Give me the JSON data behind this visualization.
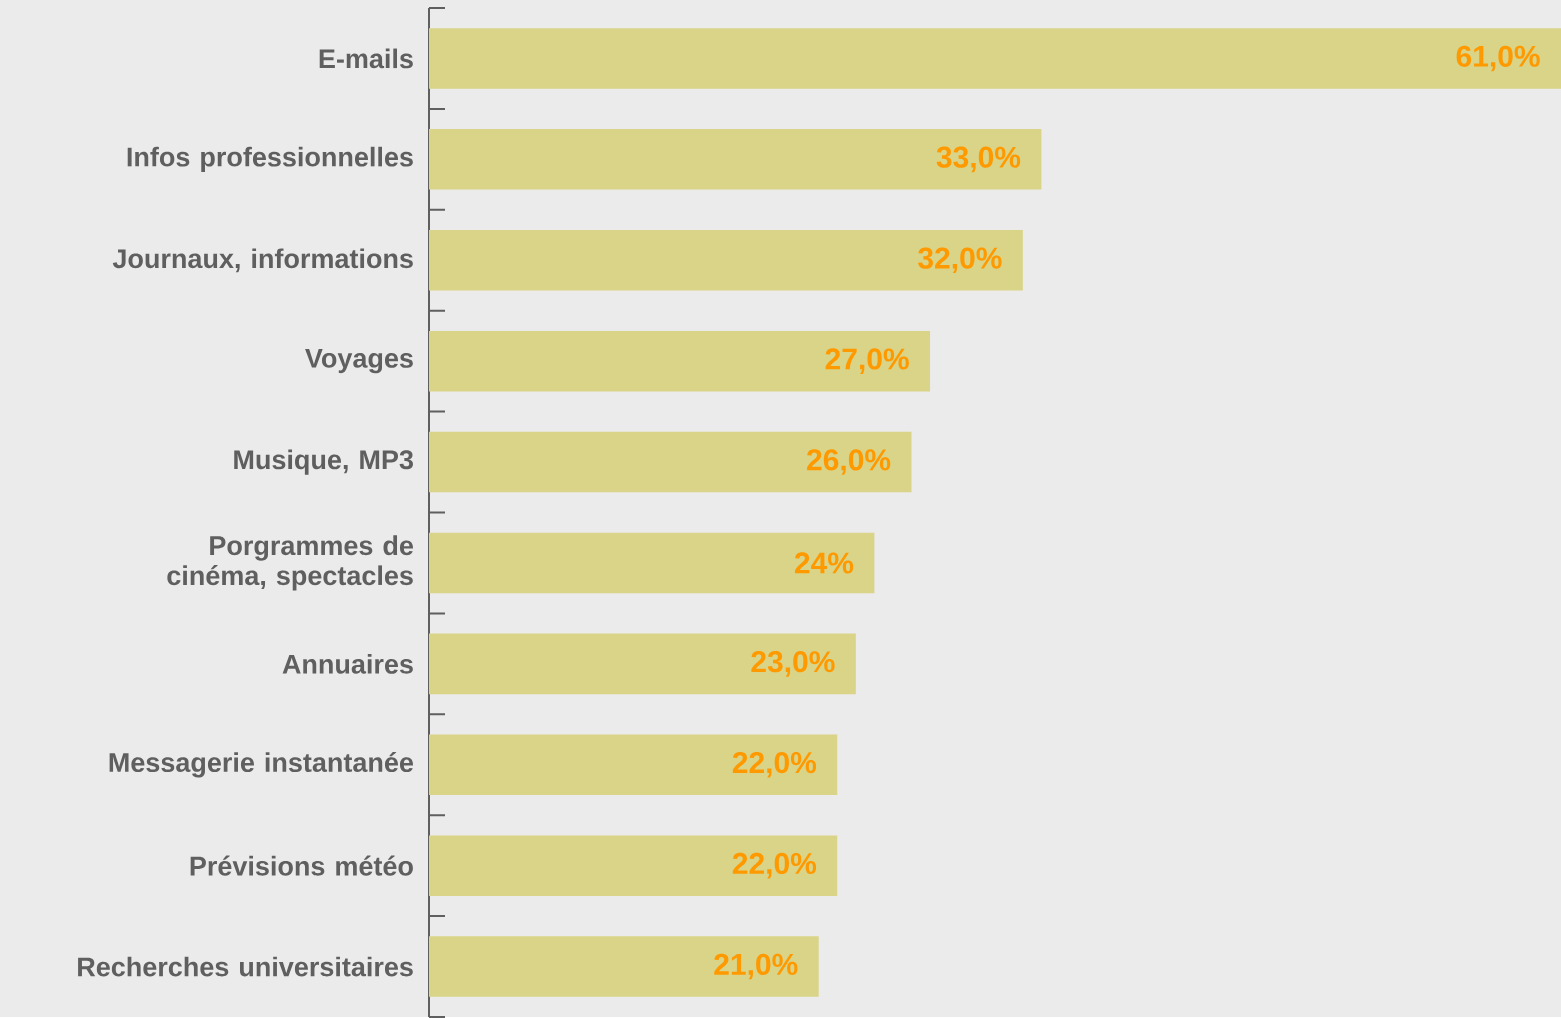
{
  "chart_data": {
    "type": "bar",
    "orientation": "horizontal",
    "categories": [
      "E-mails",
      "Infos professionnelles",
      "Journaux, informations",
      "Voyages",
      "Musique, MP3",
      "Porgrammes de cinéma, spectacles",
      "Annuaires",
      "Messagerie instantanée",
      "Prévisions météo",
      "Recherches universitaires"
    ],
    "values": [
      61,
      33,
      32,
      27,
      26,
      24,
      23,
      22,
      22,
      21
    ],
    "value_labels": [
      "61,0%",
      "33,0%",
      "32,0%",
      "27,0%",
      "26,0%",
      "24%",
      "23,0%",
      "22,0%",
      "22,0%",
      "21,0%"
    ],
    "color": "#d9d487"
  }
}
